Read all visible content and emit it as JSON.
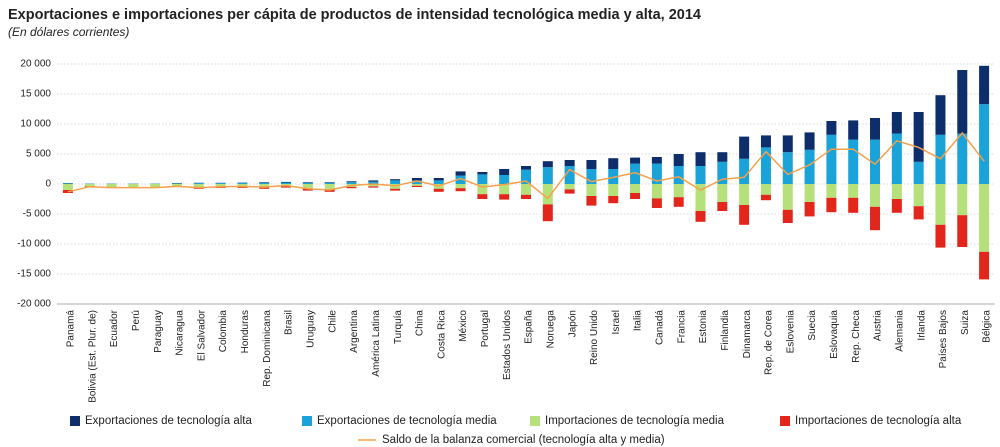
{
  "chart_data": {
    "type": "bar",
    "title": "Exportaciones e importaciones per cápita de productos de intensidad tecnológica media y alta, 2014",
    "subtitle": "(En dólares corrientes)",
    "categories": [
      "Panamá",
      "Bolivia (Est. Plur. de)",
      "Ecuador",
      "Perú",
      "Paraguay",
      "Nicaragua",
      "El Salvador",
      "Colombia",
      "Honduras",
      "Rep. Dominicana",
      "Brasil",
      "Uruguay",
      "Chile",
      "Argentina",
      "América Latina",
      "Turquía",
      "China",
      "Costa Rica",
      "México",
      "Portugal",
      "Estados Unidos",
      "España",
      "Noruega",
      "Japón",
      "Reino Unido",
      "Israel",
      "Italia",
      "Canadá",
      "Francia",
      "Estonia",
      "Finlandia",
      "Dinamarca",
      "Rep. de Corea",
      "Eslovenia",
      "Suecia",
      "Eslovaquia",
      "Rep. Checa",
      "Austria",
      "Alemania",
      "Irlanda",
      "Países Bajos",
      "Suiza",
      "Bélgica"
    ],
    "series": [
      {
        "name": "Exportaciones de tecnología alta",
        "color": "#0d2d6b",
        "values": [
          50,
          20,
          20,
          20,
          20,
          50,
          50,
          50,
          50,
          100,
          100,
          100,
          100,
          150,
          200,
          200,
          400,
          400,
          700,
          400,
          1000,
          600,
          1000,
          1000,
          1500,
          1800,
          1000,
          1100,
          2000,
          2300,
          1600,
          3700,
          2000,
          2800,
          2900,
          2300,
          3200,
          3600,
          3600,
          8300,
          6600,
          10600,
          6400
        ]
      },
      {
        "name": "Exportaciones de tecnología media",
        "color": "#1aa3d8",
        "values": [
          100,
          50,
          50,
          50,
          50,
          100,
          150,
          150,
          200,
          200,
          250,
          200,
          200,
          300,
          400,
          600,
          600,
          600,
          1400,
          1600,
          1500,
          2400,
          2800,
          3000,
          2500,
          2500,
          3400,
          3400,
          3000,
          3000,
          3700,
          4200,
          6100,
          5300,
          5700,
          8200,
          7400,
          7400,
          8400,
          3700,
          8200,
          8400,
          13300
        ]
      },
      {
        "name": "Importaciones de tecnología media",
        "color": "#b5e07a",
        "values": [
          -1000,
          -400,
          -500,
          -500,
          -500,
          -400,
          -600,
          -500,
          -500,
          -600,
          -400,
          -800,
          -900,
          -500,
          -400,
          -800,
          -300,
          -800,
          -700,
          -1700,
          -1700,
          -1800,
          -3400,
          -900,
          -2000,
          -2000,
          -1500,
          -2400,
          -2200,
          -4500,
          -3000,
          -3500,
          -1800,
          -4300,
          -3000,
          -2300,
          -2300,
          -3800,
          -2500,
          -3700,
          -6800,
          -5200,
          -11300
        ]
      },
      {
        "name": "Importaciones de tecnología alta",
        "color": "#e3261b",
        "values": [
          -500,
          -100,
          -150,
          -150,
          -150,
          -100,
          -200,
          -150,
          -150,
          -200,
          -200,
          -300,
          -400,
          -200,
          -200,
          -300,
          -200,
          -500,
          -500,
          -800,
          -900,
          -700,
          -2800,
          -700,
          -1600,
          -1200,
          -1000,
          -1600,
          -1600,
          -1800,
          -1500,
          -3300,
          -900,
          -2200,
          -2400,
          -2400,
          -2500,
          -3900,
          -2300,
          -2200,
          -3800,
          -5300,
          -4600
        ]
      },
      {
        "name": "Saldo de la balanza comercial (tecnología alta y media)",
        "type": "line",
        "color": "#f5a04a",
        "values": [
          -1300,
          -450,
          -600,
          -600,
          -600,
          -400,
          -600,
          -450,
          -400,
          -500,
          -250,
          -800,
          -1000,
          -250,
          0,
          -300,
          500,
          -300,
          900,
          -500,
          -100,
          500,
          -2400,
          2400,
          400,
          1100,
          1900,
          500,
          1200,
          -1000,
          800,
          1100,
          5400,
          1600,
          3200,
          5800,
          5800,
          3300,
          7200,
          6100,
          4200,
          8500,
          3800
        ]
      }
    ],
    "ylim": [
      -20000,
      20000
    ],
    "yticks": [
      {
        "value": -20000,
        "label": "-20 000"
      },
      {
        "value": -15000,
        "label": "-15 000"
      },
      {
        "value": -10000,
        "label": "-10 000"
      },
      {
        "value": -5000,
        "label": "-5 000"
      },
      0,
      {
        "value": 5000,
        "label": "5 000"
      },
      {
        "value": 10000,
        "label": "10 000"
      },
      {
        "value": 15000,
        "label": "15 000"
      },
      {
        "value": 20000,
        "label": "20 000"
      }
    ],
    "grid": true
  }
}
